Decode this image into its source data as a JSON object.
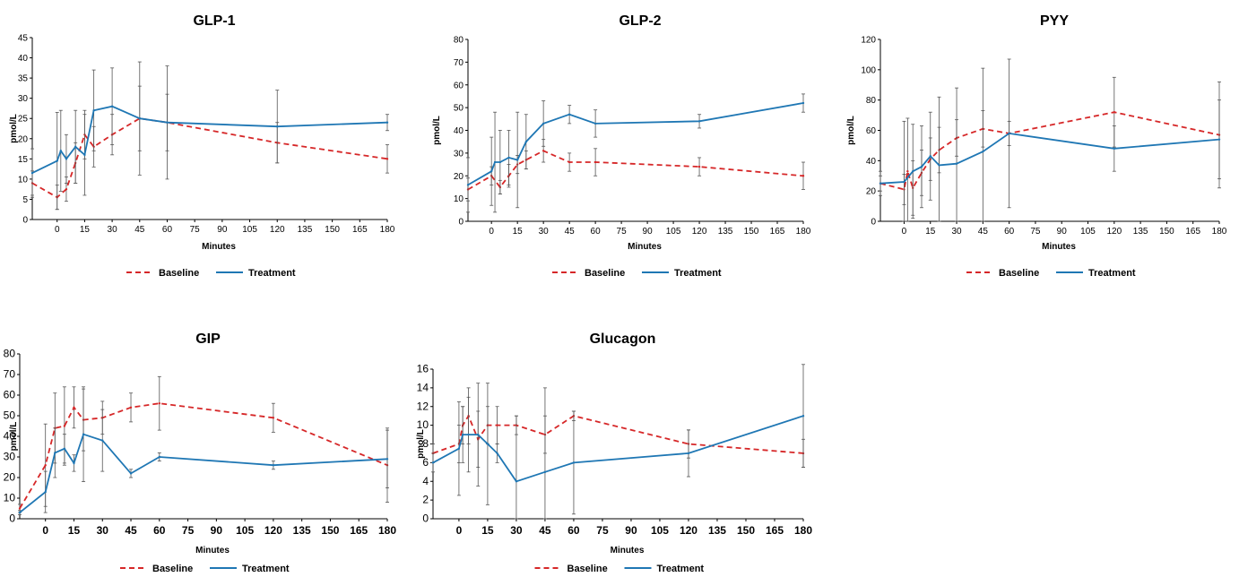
{
  "colors": {
    "baseline": "#d62728",
    "treatment": "#1f77b4",
    "axis": "#000000",
    "errorbar": "#555555"
  },
  "chart_data": [
    {
      "type": "line",
      "title": "GLP-1",
      "xlabel": "Minutes",
      "ylabel": "pmol/L",
      "xlim": [
        -10,
        180
      ],
      "ylim": [
        0,
        45
      ],
      "xticks": [
        0,
        15,
        30,
        45,
        60,
        75,
        90,
        105,
        120,
        135,
        150,
        165,
        180
      ],
      "yticks": [
        0,
        5,
        10,
        15,
        20,
        25,
        30,
        35,
        40,
        45
      ],
      "grid": false,
      "legend_position": "bottom",
      "series": [
        {
          "name": "Baseline",
          "style": "dashed",
          "x": [
            -10,
            0,
            5,
            10,
            15,
            20,
            30,
            45,
            60,
            120,
            180
          ],
          "y": [
            9,
            5.5,
            7.5,
            14,
            21,
            18,
            21,
            25,
            24,
            19,
            15
          ],
          "err": [
            3,
            3,
            3,
            5,
            6,
            5,
            5,
            8,
            7,
            5,
            3.5
          ]
        },
        {
          "name": "Treatment",
          "style": "solid",
          "x": [
            -10,
            0,
            2,
            5,
            10,
            15,
            20,
            30,
            45,
            60,
            120,
            180
          ],
          "y": [
            11.5,
            14.5,
            17,
            15,
            18,
            16,
            27,
            28,
            25,
            24,
            23,
            24
          ],
          "err": [
            6,
            12,
            10,
            6,
            9,
            10,
            10,
            9.5,
            14,
            14,
            9,
            2
          ]
        }
      ]
    },
    {
      "type": "line",
      "title": "GLP-2",
      "xlabel": "Minutes",
      "ylabel": "pmol/L",
      "xlim": [
        -10,
        180
      ],
      "ylim": [
        0,
        80
      ],
      "xticks": [
        0,
        15,
        30,
        45,
        60,
        75,
        90,
        105,
        120,
        135,
        150,
        165,
        180
      ],
      "yticks": [
        0,
        10,
        20,
        30,
        40,
        50,
        60,
        70,
        80
      ],
      "grid": false,
      "legend_position": "bottom",
      "series": [
        {
          "name": "Baseline",
          "style": "dashed",
          "x": [
            -10,
            0,
            5,
            10,
            15,
            20,
            30,
            45,
            60,
            120,
            180
          ],
          "y": [
            14,
            20,
            15,
            20,
            25,
            27,
            31,
            26,
            26,
            24,
            20
          ],
          "err": [
            5,
            4,
            3,
            5,
            4,
            4,
            5,
            4,
            6,
            4,
            6
          ]
        },
        {
          "name": "Treatment",
          "style": "solid",
          "x": [
            -10,
            0,
            2,
            5,
            10,
            15,
            20,
            30,
            45,
            60,
            120,
            180
          ],
          "y": [
            16,
            22,
            26,
            26,
            28,
            27,
            35,
            43,
            47,
            43,
            44,
            52
          ],
          "err": [
            12,
            15,
            22,
            14,
            12,
            21,
            12,
            10,
            4,
            6,
            3,
            4
          ]
        }
      ]
    },
    {
      "type": "line",
      "title": "PYY",
      "xlabel": "Minutes",
      "ylabel": "pmol/L",
      "xlim": [
        -10,
        180
      ],
      "ylim": [
        0,
        120
      ],
      "xticks": [
        0,
        15,
        30,
        45,
        60,
        75,
        90,
        105,
        120,
        135,
        150,
        165,
        180
      ],
      "yticks": [
        0,
        20,
        40,
        60,
        80,
        100,
        120
      ],
      "grid": false,
      "legend_position": "bottom",
      "series": [
        {
          "name": "Baseline",
          "style": "dashed",
          "x": [
            -10,
            0,
            2,
            5,
            10,
            15,
            20,
            30,
            45,
            60,
            120,
            180
          ],
          "y": [
            25,
            21,
            33,
            22,
            32,
            41,
            47,
            55,
            61,
            58,
            72,
            57
          ],
          "err": [
            5,
            10,
            35,
            18,
            15,
            14,
            15,
            12,
            12,
            8,
            23,
            35
          ]
        },
        {
          "name": "Treatment",
          "style": "solid",
          "x": [
            -10,
            0,
            5,
            10,
            15,
            20,
            30,
            45,
            60,
            120,
            180
          ],
          "y": [
            25,
            26,
            33,
            36,
            43,
            37,
            38,
            46,
            58,
            48,
            54
          ],
          "err": [
            8,
            40,
            31,
            27,
            29,
            45,
            50,
            55,
            49,
            15,
            26
          ]
        }
      ]
    },
    {
      "type": "line",
      "title": "GIP",
      "xlabel": "Minutes",
      "ylabel": "pmol/L",
      "xlim": [
        -10,
        180
      ],
      "ylim": [
        0,
        80
      ],
      "xticks": [
        0,
        15,
        30,
        45,
        60,
        75,
        90,
        105,
        120,
        135,
        150,
        165,
        180
      ],
      "yticks": [
        0,
        10,
        20,
        30,
        40,
        50,
        60,
        70,
        80
      ],
      "grid": false,
      "legend_position": "bottom",
      "series": [
        {
          "name": "Baseline",
          "style": "dashed",
          "x": [
            -10,
            0,
            5,
            10,
            15,
            20,
            30,
            45,
            60,
            120,
            180
          ],
          "y": [
            5,
            26,
            44,
            45,
            54,
            48,
            49,
            54,
            56,
            49,
            26
          ],
          "err": [
            2,
            20,
            17,
            19,
            10,
            15,
            8,
            7,
            13,
            7,
            18
          ]
        },
        {
          "name": "Treatment",
          "style": "solid",
          "x": [
            -10,
            0,
            5,
            10,
            15,
            20,
            30,
            45,
            60,
            120,
            180
          ],
          "y": [
            3,
            13,
            32,
            34,
            27,
            41,
            38,
            22,
            30,
            26,
            29
          ],
          "err": [
            1,
            10,
            12,
            7,
            4,
            23,
            15,
            2,
            2,
            2,
            14
          ]
        }
      ]
    },
    {
      "type": "line",
      "title": "Glucagon",
      "xlabel": "Minutes",
      "ylabel": "pmol/L",
      "xlim": [
        -10,
        180
      ],
      "ylim": [
        0,
        16
      ],
      "xticks": [
        0,
        15,
        30,
        45,
        60,
        75,
        90,
        105,
        120,
        135,
        150,
        165,
        180
      ],
      "yticks": [
        0,
        2,
        4,
        6,
        8,
        10,
        12,
        14,
        16
      ],
      "grid": false,
      "legend_position": "bottom",
      "series": [
        {
          "name": "Baseline",
          "style": "dashed",
          "x": [
            -10,
            0,
            2,
            5,
            10,
            15,
            20,
            30,
            45,
            60,
            120,
            180
          ],
          "y": [
            7,
            8,
            10,
            11,
            8.5,
            10,
            10,
            10,
            9,
            11,
            8,
            7
          ],
          "err": [
            1,
            2,
            2,
            3,
            3,
            2,
            2,
            1,
            2,
            0.5,
            1.5,
            1.5
          ]
        },
        {
          "name": "Treatment",
          "style": "solid",
          "x": [
            -10,
            0,
            2,
            5,
            10,
            15,
            20,
            30,
            45,
            60,
            120,
            180
          ],
          "y": [
            6,
            7.5,
            9,
            9,
            9,
            8,
            7,
            4,
            5,
            6,
            7,
            11
          ],
          "err": [
            1,
            5,
            3,
            4,
            5.5,
            6.5,
            1,
            7,
            9,
            5.5,
            2.5,
            5.5
          ]
        }
      ]
    }
  ]
}
